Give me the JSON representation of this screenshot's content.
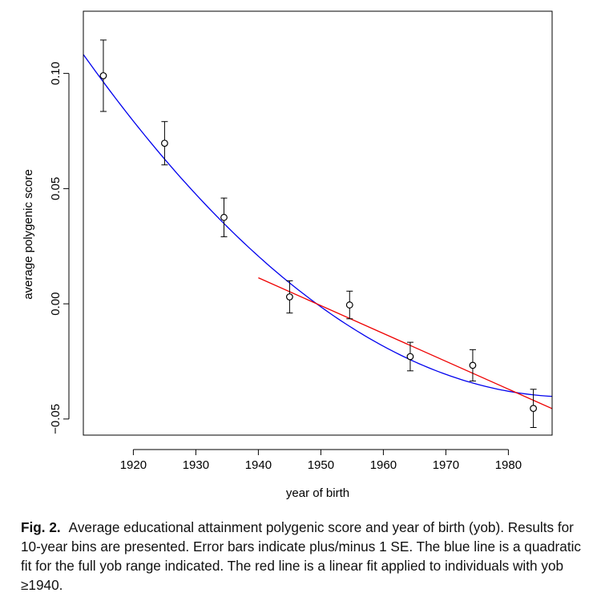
{
  "chart_data": {
    "type": "scatter",
    "xlabel": "year of birth",
    "ylabel": "average polygenic score",
    "xlim": [
      1912,
      1987
    ],
    "ylim": [
      -0.057,
      0.127
    ],
    "x_ticks": [
      1920,
      1930,
      1940,
      1950,
      1960,
      1970,
      1980
    ],
    "x_tick_labels": [
      "1920",
      "1930",
      "1940",
      "1950",
      "1960",
      "1970",
      "1980"
    ],
    "y_ticks": [
      -0.05,
      0.0,
      0.05,
      0.1
    ],
    "y_tick_labels": [
      "−0.05",
      "0.00",
      "0.05",
      "0.10"
    ],
    "points": [
      {
        "x": 1915.2,
        "y": 0.099,
        "lo": 0.0835,
        "hi": 0.1145
      },
      {
        "x": 1925.0,
        "y": 0.0697,
        "lo": 0.0603,
        "hi": 0.0791
      },
      {
        "x": 1934.5,
        "y": 0.0375,
        "lo": 0.0291,
        "hi": 0.0459
      },
      {
        "x": 1945.0,
        "y": 0.003,
        "lo": -0.004,
        "hi": 0.01
      },
      {
        "x": 1954.6,
        "y": -0.0005,
        "lo": -0.0065,
        "hi": 0.0055
      },
      {
        "x": 1964.3,
        "y": -0.0229,
        "lo": -0.0291,
        "hi": -0.0167
      },
      {
        "x": 1974.3,
        "y": -0.0267,
        "lo": -0.0335,
        "hi": -0.0199
      },
      {
        "x": 1984.0,
        "y": -0.0454,
        "lo": -0.0537,
        "hi": -0.0371
      }
    ],
    "series": [
      {
        "name": "quadratic fit (full yob range)",
        "color": "#0000ee",
        "type": "quadratic",
        "x_start": 1912,
        "x_end": 1987,
        "vertex_x": 1990,
        "vertex_y": -0.0404,
        "a": 2.443e-05
      },
      {
        "name": "linear fit (yob ≥ 1940)",
        "color": "#ee0000",
        "type": "linear",
        "x_start": 1940,
        "x_end": 1987,
        "y_start": 0.0113,
        "y_end": -0.0455
      }
    ]
  },
  "caption": {
    "label": "Fig. 2.",
    "text": "Average educational attainment polygenic score and year of birth (yob). Results for 10-year bins are presented. Error bars indicate plus/minus 1 SE. The blue line is a quadratic fit for the full yob range indicated. The red line is a linear fit applied to individuals with yob ≥1940."
  }
}
